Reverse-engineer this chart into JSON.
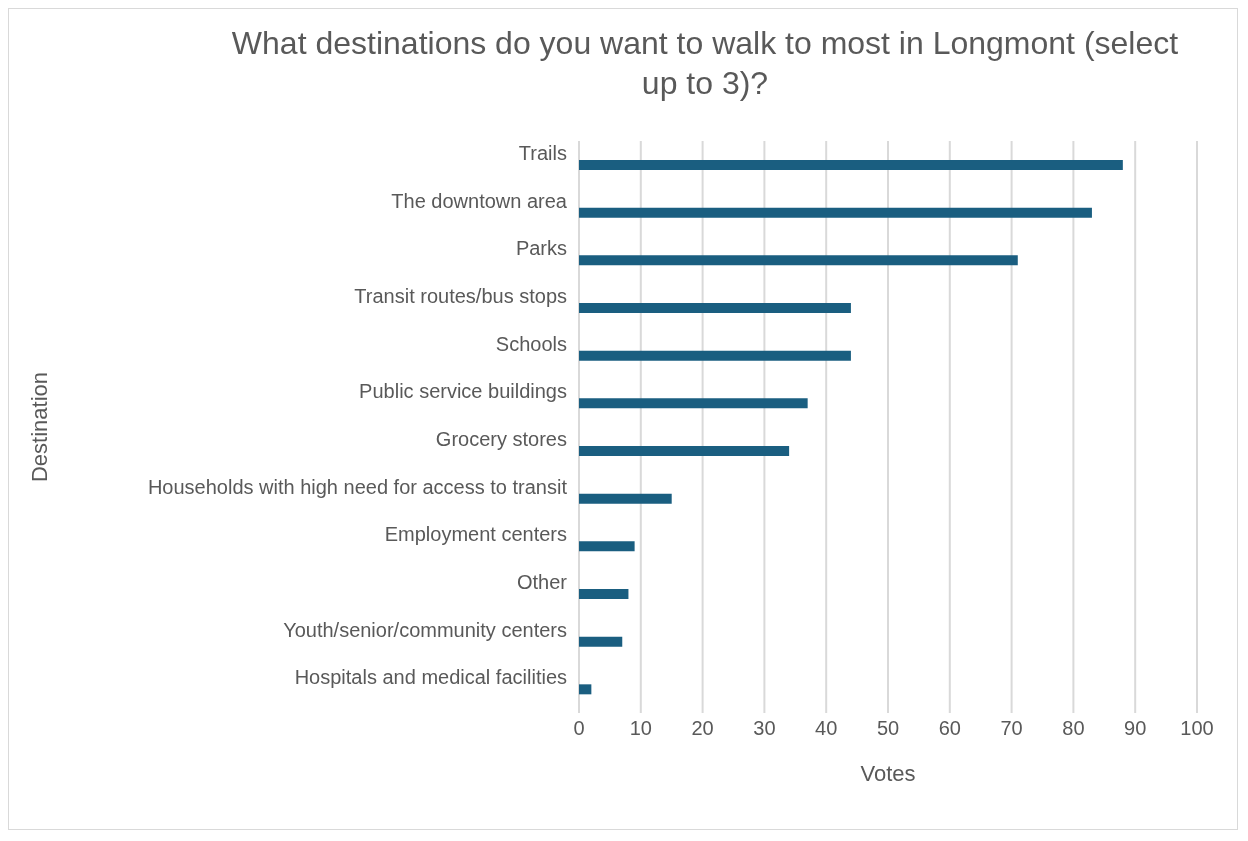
{
  "chart_data": {
    "type": "bar",
    "orientation": "horizontal",
    "title": "What destinations do you want to walk to most in Longmont (select up to 3)?",
    "xlabel": "Votes",
    "ylabel": "Destination",
    "categories": [
      "Trails",
      "The downtown area",
      "Parks",
      "Transit routes/bus stops",
      "Schools",
      "Public service buildings",
      "Grocery stores",
      "Households with high need for access to transit",
      "Employment centers",
      "Other",
      "Youth/senior/community centers",
      "Hospitals and medical facilities"
    ],
    "values": [
      88,
      83,
      71,
      44,
      44,
      37,
      34,
      15,
      9,
      8,
      7,
      2
    ],
    "color": "#1a5e80",
    "xlim": [
      0,
      100
    ],
    "xticks": [
      0,
      10,
      20,
      30,
      40,
      50,
      60,
      70,
      80,
      90,
      100
    ],
    "grid": "x"
  }
}
